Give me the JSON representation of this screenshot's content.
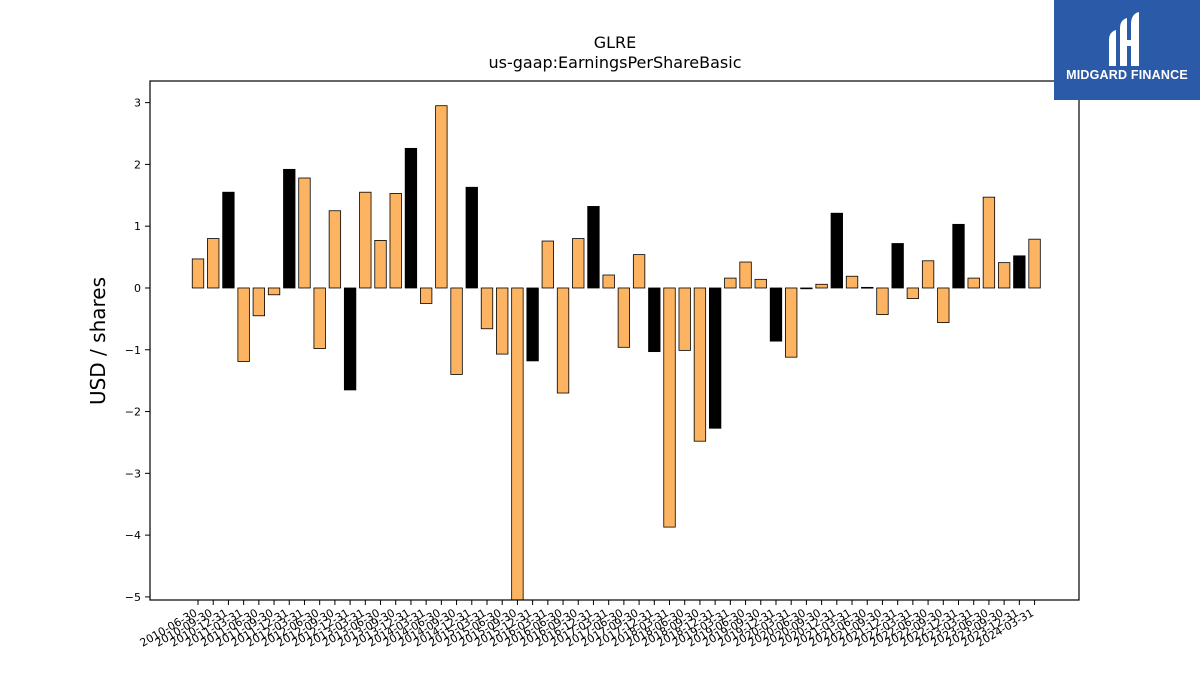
{
  "brand": {
    "name": "MIDGARD FINANCE",
    "logo_icon": "midgard-m-logo-icon",
    "background": "#2b5aa8"
  },
  "chart_data": {
    "type": "bar",
    "title": "GLRE",
    "subtitle": "us-gaap:EarningsPerShareBasic",
    "ylabel": "USD / shares",
    "xlabel": "",
    "ylim": [
      -5.05,
      3.35
    ],
    "yticks": [
      -5,
      -4,
      -3,
      -2,
      -1,
      0,
      1,
      2,
      3
    ],
    "ytick_labels": [
      "−5",
      "−4",
      "−3",
      "−2",
      "−1",
      "0",
      "1",
      "2",
      "3"
    ],
    "colors": {
      "quarterly": "#fdb462",
      "annual": "#000000",
      "edge": "#000000"
    },
    "categories": [
      "2010-06-30",
      "2010-09-30",
      "2010-12-31",
      "2011-03-31",
      "2011-06-30",
      "2011-09-30",
      "2011-12-31",
      "2012-03-31",
      "2012-06-30",
      "2012-09-30",
      "2012-12-31",
      "2013-03-31",
      "2013-06-30",
      "2013-09-30",
      "2013-12-31",
      "2014-03-31",
      "2014-06-30",
      "2014-09-30",
      "2014-12-31",
      "2015-03-31",
      "2015-06-30",
      "2015-09-30",
      "2015-12-31",
      "2016-03-31",
      "2016-06-30",
      "2016-09-30",
      "2016-12-31",
      "2017-03-31",
      "2017-06-30",
      "2017-09-30",
      "2017-12-31",
      "2018-03-31",
      "2018-06-30",
      "2018-09-30",
      "2018-12-31",
      "2019-03-31",
      "2019-06-30",
      "2019-09-30",
      "2019-12-31",
      "2020-03-31",
      "2020-06-30",
      "2020-09-30",
      "2020-12-31",
      "2021-03-31",
      "2021-06-30",
      "2021-09-30",
      "2021-12-31",
      "2022-03-31",
      "2022-06-30",
      "2022-09-30",
      "2022-12-31",
      "2023-03-31",
      "2023-06-30",
      "2023-09-30",
      "2023-12-31",
      "2024-03-31"
    ],
    "values": [
      0.47,
      0.8,
      1.55,
      -1.19,
      -0.45,
      -0.11,
      1.92,
      1.78,
      -0.98,
      1.25,
      -1.65,
      1.55,
      0.77,
      1.53,
      2.26,
      -0.25,
      2.95,
      -1.4,
      1.63,
      -0.66,
      -1.07,
      -5.1,
      -1.18,
      0.76,
      -1.7,
      0.8,
      1.32,
      0.21,
      -0.96,
      0.54,
      -1.03,
      -3.87,
      -1.01,
      -2.48,
      -2.27,
      0.16,
      0.42,
      0.14,
      -0.86,
      -1.12,
      0.0,
      0.06,
      1.21,
      0.19,
      0.01,
      -0.43,
      0.72,
      -0.17,
      0.44,
      -0.56,
      1.03,
      0.16,
      1.47,
      0.41,
      0.52,
      0.79
    ],
    "annual_flags": [
      false,
      false,
      true,
      false,
      false,
      false,
      true,
      false,
      false,
      false,
      true,
      false,
      false,
      false,
      true,
      false,
      false,
      false,
      true,
      false,
      false,
      false,
      true,
      false,
      false,
      false,
      true,
      false,
      false,
      false,
      true,
      false,
      false,
      false,
      true,
      false,
      false,
      false,
      true,
      false,
      false,
      false,
      true,
      false,
      false,
      false,
      true,
      false,
      false,
      false,
      true,
      false,
      false,
      false,
      true,
      false
    ],
    "grid": false,
    "legend": "none"
  }
}
